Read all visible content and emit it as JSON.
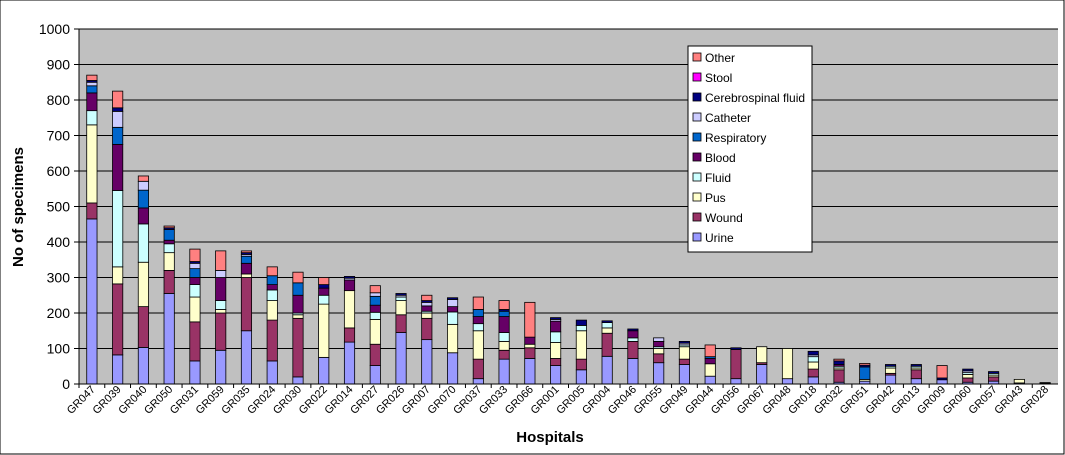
{
  "chart_data": {
    "type": "bar",
    "stacked": true,
    "title": "",
    "xlabel": "Hospitals",
    "ylabel": "No of specimens",
    "ylim": [
      0,
      1000
    ],
    "yticks": [
      0,
      100,
      200,
      300,
      400,
      500,
      600,
      700,
      800,
      900,
      1000
    ],
    "grid": true,
    "legend_position": "top-right",
    "categories": [
      "GR047",
      "GR039",
      "GR040",
      "GR050",
      "GR031",
      "GR059",
      "GR035",
      "GR024",
      "GR030",
      "GR022",
      "GR014",
      "GR027",
      "GR026",
      "GR007",
      "GR070",
      "GR037",
      "GR033",
      "GR066",
      "GR001",
      "GR005",
      "GR004",
      "GR046",
      "GR055",
      "GR049",
      "GR044",
      "GR056",
      "GR067",
      "GR048",
      "GR018",
      "GR032",
      "GR051",
      "GR042",
      "GR013",
      "GR009",
      "GR060",
      "GR057",
      "GR043",
      "GR028"
    ],
    "series": [
      {
        "name": "Urine",
        "color": "#9999ff",
        "values": [
          465,
          82,
          103,
          255,
          65,
          95,
          150,
          65,
          20,
          75,
          118,
          52,
          145,
          125,
          88,
          15,
          70,
          72,
          52,
          40,
          78,
          72,
          60,
          55,
          22,
          15,
          55,
          15,
          20,
          5,
          8,
          25,
          15,
          12,
          5,
          8,
          3,
          2
        ]
      },
      {
        "name": "Wound",
        "color": "#993366",
        "values": [
          45,
          200,
          115,
          65,
          110,
          105,
          150,
          115,
          165,
          0,
          40,
          60,
          50,
          60,
          0,
          55,
          25,
          30,
          20,
          30,
          65,
          48,
          25,
          15,
          0,
          82,
          5,
          0,
          22,
          35,
          0,
          5,
          25,
          0,
          12,
          12,
          0,
          0
        ]
      },
      {
        "name": "Pus",
        "color": "#ffffcc",
        "values": [
          220,
          48,
          125,
          50,
          70,
          10,
          10,
          55,
          10,
          150,
          105,
          70,
          40,
          15,
          80,
          80,
          25,
          10,
          45,
          80,
          15,
          0,
          15,
          35,
          35,
          0,
          45,
          85,
          20,
          5,
          5,
          15,
          5,
          0,
          10,
          5,
          10,
          2
        ]
      },
      {
        "name": "Fluid",
        "color": "#ccffff",
        "values": [
          40,
          215,
          108,
          25,
          35,
          25,
          0,
          30,
          5,
          25,
          0,
          20,
          10,
          5,
          35,
          20,
          25,
          0,
          30,
          15,
          15,
          10,
          5,
          5,
          0,
          0,
          0,
          0,
          15,
          5,
          0,
          5,
          5,
          0,
          5,
          5,
          0,
          0
        ]
      },
      {
        "name": "Blood",
        "color": "#660066",
        "values": [
          50,
          130,
          45,
          10,
          20,
          65,
          30,
          15,
          50,
          20,
          30,
          20,
          0,
          15,
          15,
          20,
          45,
          20,
          30,
          0,
          0,
          20,
          15,
          0,
          15,
          0,
          0,
          0,
          0,
          5,
          0,
          0,
          0,
          0,
          0,
          0,
          0,
          0
        ]
      },
      {
        "name": "Respiratory",
        "color": "#0066cc",
        "values": [
          20,
          48,
          50,
          30,
          25,
          0,
          20,
          25,
          35,
          0,
          0,
          25,
          0,
          0,
          0,
          20,
          15,
          0,
          0,
          0,
          0,
          0,
          0,
          0,
          5,
          0,
          0,
          0,
          0,
          0,
          35,
          0,
          0,
          0,
          0,
          0,
          0,
          0
        ]
      },
      {
        "name": "Catheter",
        "color": "#ccccff",
        "values": [
          10,
          45,
          25,
          0,
          15,
          20,
          5,
          0,
          0,
          0,
          5,
          10,
          5,
          10,
          20,
          0,
          0,
          0,
          5,
          0,
          0,
          0,
          10,
          5,
          0,
          0,
          0,
          0,
          5,
          0,
          0,
          0,
          0,
          0,
          5,
          0,
          0,
          0
        ]
      },
      {
        "name": "Cerebrospinal fluid",
        "color": "#000080",
        "values": [
          5,
          10,
          0,
          5,
          5,
          0,
          5,
          0,
          0,
          10,
          5,
          0,
          5,
          5,
          5,
          0,
          5,
          0,
          5,
          15,
          5,
          5,
          0,
          5,
          0,
          5,
          0,
          0,
          10,
          10,
          5,
          5,
          5,
          5,
          5,
          5,
          0,
          0
        ]
      },
      {
        "name": "Stool",
        "color": "#ff00ff",
        "values": [
          0,
          0,
          0,
          0,
          0,
          0,
          0,
          0,
          0,
          0,
          0,
          0,
          0,
          0,
          0,
          0,
          0,
          0,
          0,
          0,
          0,
          0,
          0,
          0,
          0,
          0,
          0,
          0,
          0,
          0,
          0,
          0,
          0,
          0,
          0,
          0,
          0,
          0
        ]
      },
      {
        "name": "Other",
        "color": "#ff8080",
        "values": [
          15,
          47,
          15,
          5,
          35,
          55,
          5,
          25,
          30,
          20,
          0,
          20,
          0,
          15,
          0,
          35,
          25,
          98,
          0,
          0,
          0,
          0,
          0,
          0,
          33,
          0,
          0,
          0,
          0,
          5,
          5,
          0,
          0,
          35,
          0,
          0,
          0,
          0
        ]
      }
    ]
  }
}
